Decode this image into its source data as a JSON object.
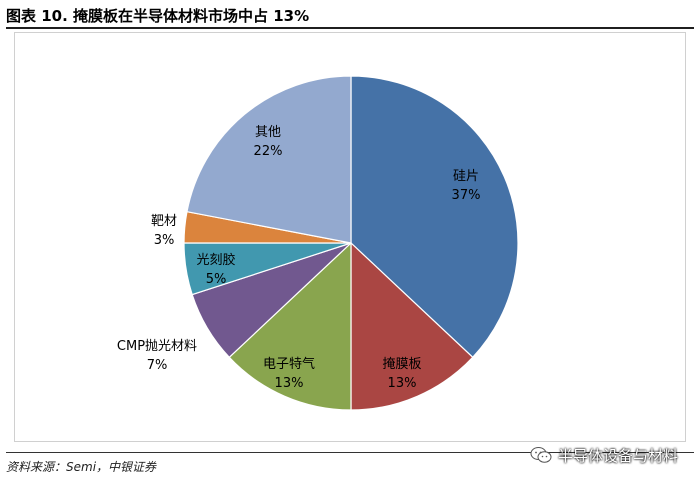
{
  "figure": {
    "title": "图表 10. 掩膜板在半导体材料市场中占 13%",
    "source": "资料来源：Semi，中银证券",
    "watermark": "半导体设备与材料",
    "watermark_icon": "wechat-icon"
  },
  "chart_data": {
    "type": "pie",
    "title": "",
    "start_angle_deg": 0,
    "direction": "clockwise",
    "slices": [
      {
        "label": "硅片",
        "value": 37,
        "value_label": "37%",
        "color": "#4572a7",
        "label_color": "#000000"
      },
      {
        "label": "掩膜板",
        "value": 13,
        "value_label": "13%",
        "color": "#aa4643",
        "label_color": "#000000"
      },
      {
        "label": "电子特气",
        "value": 13,
        "value_label": "13%",
        "color": "#89a54e",
        "label_color": "#000000"
      },
      {
        "label": "CMP抛光材料",
        "value": 7,
        "value_label": "7%",
        "color": "#71588f",
        "label_color": "#000000"
      },
      {
        "label": "光刻胶",
        "value": 5,
        "value_label": "5%",
        "color": "#4198af",
        "label_color": "#000000"
      },
      {
        "label": "靶材",
        "value": 3,
        "value_label": "3%",
        "color": "#db843d",
        "label_color": "#000000"
      },
      {
        "label": "其他",
        "value": 22,
        "value_label": "22%",
        "color": "#93a9cf",
        "label_color": "#000000"
      }
    ]
  }
}
